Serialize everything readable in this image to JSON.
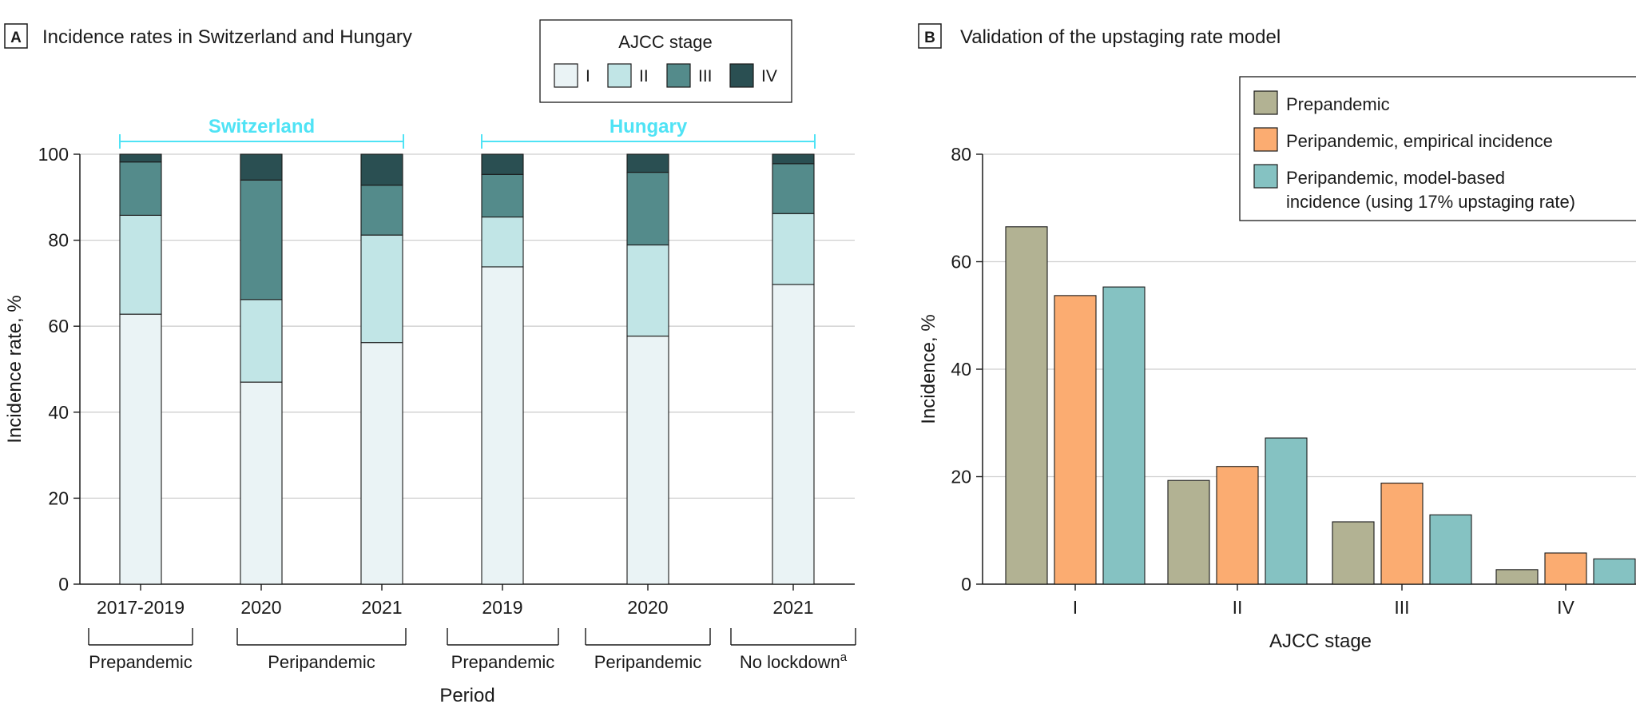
{
  "colors": {
    "stage_I": "#eaf3f5",
    "stage_II": "#c1e5e6",
    "stage_III": "#548b8b",
    "stage_IV": "#2a4f52",
    "prepandemic": "#b2b293",
    "peripandemic_empirical": "#fbac71",
    "peripandemic_model": "#85c2c2",
    "country_label": "#4fe3f5",
    "grid": "#cfcfcf"
  },
  "panel_a": {
    "letter": "A",
    "title": "Incidence rates in Switzerland and Hungary",
    "legend_title": "AJCC stage",
    "country_labels": [
      "Switzerland",
      "Hungary"
    ],
    "period_groups": [
      {
        "label": "Prepandemic"
      },
      {
        "label": "Peripandemic"
      },
      {
        "label": "Prepandemic"
      },
      {
        "label": "Peripandemic"
      },
      {
        "label": "No lockdown",
        "sup": "a"
      }
    ],
    "period_axis_label": "Period"
  },
  "panel_b": {
    "letter": "B",
    "title": "Validation of the upstaging rate model"
  },
  "chart_data": [
    {
      "type": "bar",
      "stacked": true,
      "title": "Incidence rates in Switzerland and Hungary",
      "xlabel": "Period",
      "ylabel": "Incidence rate, %",
      "ylim": [
        0,
        100
      ],
      "yticks": [
        0,
        20,
        40,
        60,
        80,
        100
      ],
      "grid": true,
      "legend_title": "AJCC stage",
      "categories": [
        "2017-2019",
        "2020",
        "2021",
        "2019",
        "2020",
        "2021"
      ],
      "groups": [
        {
          "country": "Switzerland",
          "categories": [
            "2017-2019",
            "2020",
            "2021"
          ]
        },
        {
          "country": "Hungary",
          "categories": [
            "2019",
            "2020",
            "2021"
          ]
        }
      ],
      "series": [
        {
          "name": "I",
          "values": [
            62.8,
            47.0,
            56.2,
            73.8,
            57.7,
            69.7
          ]
        },
        {
          "name": "II",
          "values": [
            23.0,
            19.2,
            25.0,
            11.6,
            21.2,
            16.5
          ]
        },
        {
          "name": "III",
          "values": [
            12.4,
            27.8,
            11.6,
            9.9,
            16.9,
            11.6
          ]
        },
        {
          "name": "IV",
          "values": [
            1.8,
            6.0,
            7.2,
            4.7,
            4.2,
            2.2
          ]
        }
      ]
    },
    {
      "type": "bar",
      "title": "Validation of the upstaging rate model",
      "xlabel": "AJCC stage",
      "ylabel": "Incidence, %",
      "ylim": [
        0,
        80
      ],
      "yticks": [
        0,
        20,
        40,
        60,
        80
      ],
      "grid": true,
      "legend_position": "top-right",
      "categories": [
        "I",
        "II",
        "III",
        "IV"
      ],
      "series": [
        {
          "name": "Prepandemic",
          "values": [
            66.5,
            19.3,
            11.6,
            2.7
          ]
        },
        {
          "name": "Peripandemic, empirical incidence",
          "values": [
            53.7,
            21.9,
            18.8,
            5.8
          ]
        },
        {
          "name": "Peripandemic, model-based incidence (using 17% upstaging rate)",
          "legend_lines": [
            "Peripandemic, model-based",
            "incidence (using 17% upstaging rate)"
          ],
          "values": [
            55.3,
            27.2,
            12.9,
            4.7
          ]
        }
      ]
    }
  ]
}
